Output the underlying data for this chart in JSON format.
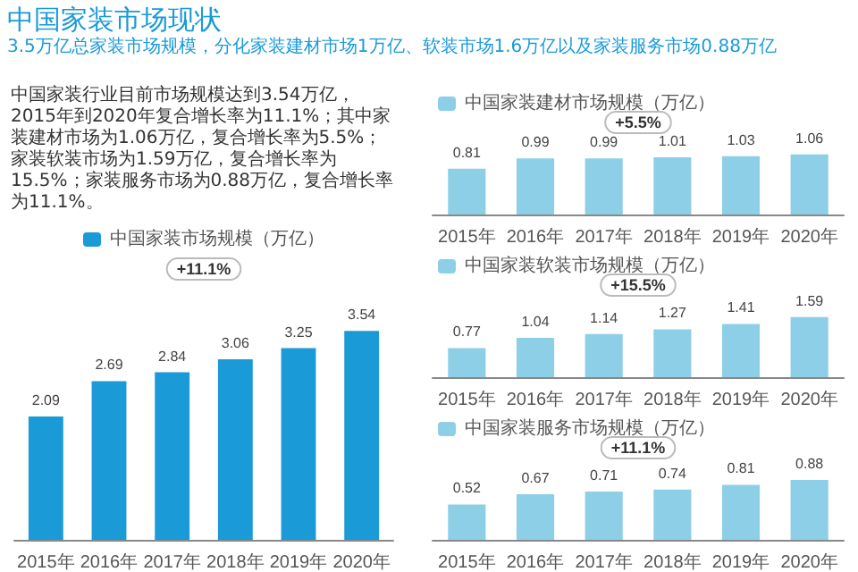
{
  "chart_data": [
    {
      "type": "bar",
      "title": "中国家装市场现状",
      "subtitle": "3.5万亿总家装市场规模，分化家装建材市场1万亿、软装市场1.6万亿以及家装服务市场0.88万亿",
      "annotations": [
        "中国家装行业目前市场规模达到3.54万亿，2015年到2020年复合增长率为11.1%；其中家装建材市场为1.06万亿，复合增长率为5.5%；家装软装市场为1.59万亿，复合增长率为15.5%；家装服务市场为0.88万亿，复合增长率为11.1%。",
        "+11.1%"
      ],
      "categories": [
        "2015年",
        "2016年",
        "2017年",
        "2018年",
        "2019年",
        "2020年"
      ],
      "series": [
        {
          "name": "中国家装市场规模（万亿）",
          "color": "#1a9ad6",
          "values": [
            2.09,
            2.69,
            2.84,
            3.06,
            3.25,
            3.54
          ]
        }
      ],
      "data_labels": true,
      "legend": "top",
      "tick_labels": "x"
    },
    {
      "type": "bar",
      "annotations": [
        "+5.5%"
      ],
      "categories": [
        "2015年",
        "2016年",
        "2017年",
        "2018年",
        "2019年",
        "2020年"
      ],
      "series": [
        {
          "name": "中国家装建材市场规模（万亿）",
          "color": "#8ecfe8",
          "values": [
            0.81,
            0.99,
            0.99,
            1.01,
            1.03,
            1.06
          ]
        }
      ],
      "data_labels": true,
      "legend": "top left",
      "tick_labels": "x"
    },
    {
      "type": "bar",
      "annotations": [
        "+15.5%"
      ],
      "categories": [
        "2015年",
        "2016年",
        "2017年",
        "2018年",
        "2019年",
        "2020年"
      ],
      "series": [
        {
          "name": "中国家装软装市场规模（万亿）",
          "color": "#8ecfe8",
          "values": [
            0.77,
            1.04,
            1.14,
            1.27,
            1.41,
            1.59
          ]
        }
      ],
      "data_labels": true,
      "legend": "top left",
      "tick_labels": "x"
    },
    {
      "type": "bar",
      "annotations": [
        "+11.1%"
      ],
      "categories": [
        "2015年",
        "2016年",
        "2017年",
        "2018年",
        "2019年",
        "2020年"
      ],
      "series": [
        {
          "name": "中国家装服务市场规模（万亿）",
          "color": "#8ecfe8",
          "values": [
            0.52,
            0.67,
            0.71,
            0.74,
            0.81,
            0.88
          ]
        }
      ],
      "data_labels": true,
      "legend": "top left",
      "tick_labels": "x"
    }
  ]
}
